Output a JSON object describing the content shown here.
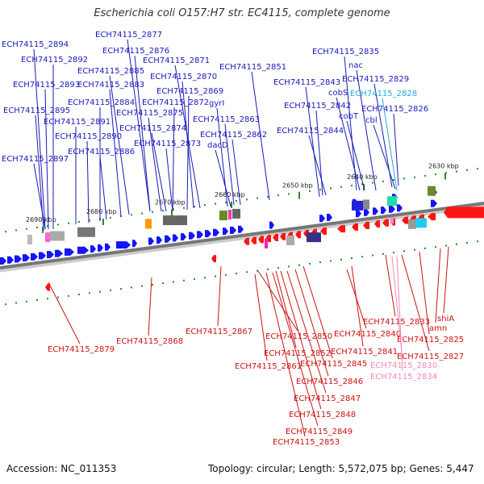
{
  "title": "Escherichia coli O157:H7 str. EC4115, complete genome",
  "footer": {
    "accession": "Accession: NC_011353",
    "summary": "Topology: circular; Length: 5,572,075 bp; Genes: 5,447"
  },
  "colors": {
    "forward_label": "#1a1ab8",
    "reverse_label": "#cc1111",
    "forward_gene": "#1414ff",
    "reverse_gene": "#ff1414",
    "highlight_forward": "#22aadd",
    "highlight_reverse": "#ee88bb",
    "backbone": "#777777",
    "tick_green": "#2a8a2a"
  },
  "scale_ticks": [
    "2690 kbp",
    "2680 kbp",
    "2670 kbp",
    "2660 kbp",
    "2650 kbp",
    "2640 kbp",
    "2630 kbp"
  ],
  "top_labels": [
    "ECH74115_2877",
    "ECH74115_2894",
    "ECH74115_2876",
    "ECH74115_2892",
    "ECH74115_2871",
    "ECH74115_2851",
    "ECH74115_2885",
    "ECH74115_2870",
    "ECH74115_2893",
    "ECH74115_2883",
    "ECH74115_2835",
    "nac",
    "ECH74115_2843",
    "ECH74115_2829",
    "ECH74115_2869",
    "cobS",
    "ECH74115_2828",
    "ECH74115_2884",
    "ECH74115_2872",
    "gyrI",
    "ECH74115_2842",
    "ECH74115_2895",
    "ECH74115_2875",
    "cobT",
    "ECH74115_2826",
    "ECH74115_2891",
    "ECH74115_2863",
    "cbl",
    "ECH74115_2874",
    "ECH74115_2844",
    "ECH74115_2890",
    "ECH74115_2862",
    "ECH74115_2873",
    "dacD",
    "ECH74115_2886",
    "ECH74115_2897"
  ],
  "bottom_labels": [
    "ECH74115_2833",
    "shiA",
    "amn",
    "ECH74115_2840",
    "ECH74115_2825",
    "ECH74115_2867",
    "ECH74115_2850",
    "ECH74115_2879",
    "ECH74115_2868",
    "ECH74115_2841",
    "ECH74115_2852",
    "ECH74115_2827",
    "ECH74115_2845",
    "ECH74115_2830",
    "ECH74115_2861",
    "ECH74115_2834",
    "ECH74115_2846",
    "ECH74115_2847",
    "ECH74115_2848",
    "ECH74115_2849",
    "ECH74115_2853"
  ]
}
